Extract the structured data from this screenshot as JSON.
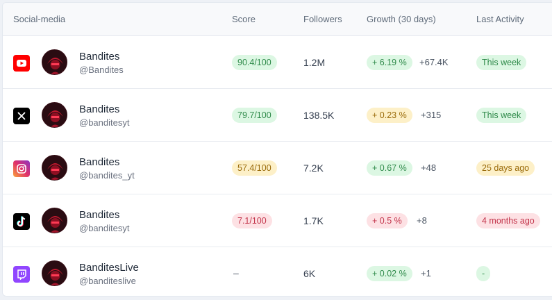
{
  "header": {
    "social": "Social-media",
    "score": "Score",
    "followers": "Followers",
    "growth": "Growth (30 days)",
    "activity": "Last Activity"
  },
  "rows": [
    {
      "platform": "youtube-icon",
      "name": "Bandites",
      "handle": "@Bandites",
      "score": "90.4/100",
      "score_level": "green",
      "followers": "1.2M",
      "growth_pct": "+ 6.19 %",
      "growth_level": "green",
      "growth_abs": "+67.4K",
      "activity": "This week",
      "activity_level": "green"
    },
    {
      "platform": "x-icon",
      "name": "Bandites",
      "handle": "@banditesyt",
      "score": "79.7/100",
      "score_level": "green",
      "followers": "138.5K",
      "growth_pct": "+ 0.23 %",
      "growth_level": "yellow",
      "growth_abs": "+315",
      "activity": "This week",
      "activity_level": "green"
    },
    {
      "platform": "instagram-icon",
      "name": "Bandites",
      "handle": "@bandites_yt",
      "score": "57.4/100",
      "score_level": "yellow",
      "followers": "7.2K",
      "growth_pct": "+ 0.67 %",
      "growth_level": "green",
      "growth_abs": "+48",
      "activity": "25 days ago",
      "activity_level": "yellow"
    },
    {
      "platform": "tiktok-icon",
      "name": "Bandites",
      "handle": "@banditesyt",
      "score": "7.1/100",
      "score_level": "red",
      "followers": "1.7K",
      "growth_pct": "+ 0.5 %",
      "growth_level": "red",
      "growth_abs": "+8",
      "activity": "4 months ago",
      "activity_level": "red"
    },
    {
      "platform": "twitch-icon",
      "name": "BanditesLive",
      "handle": "@banditeslive",
      "score": "–",
      "score_level": "none",
      "followers": "6K",
      "growth_pct": "+ 0.02 %",
      "growth_level": "green",
      "growth_abs": "+1",
      "activity": "-",
      "activity_level": "green"
    }
  ],
  "colors": {
    "green_bg": "#dcf7e3",
    "yellow_bg": "#fdf0c8",
    "red_bg": "#fde1e4",
    "youtube": "#ff0000",
    "twitch": "#9146ff"
  }
}
